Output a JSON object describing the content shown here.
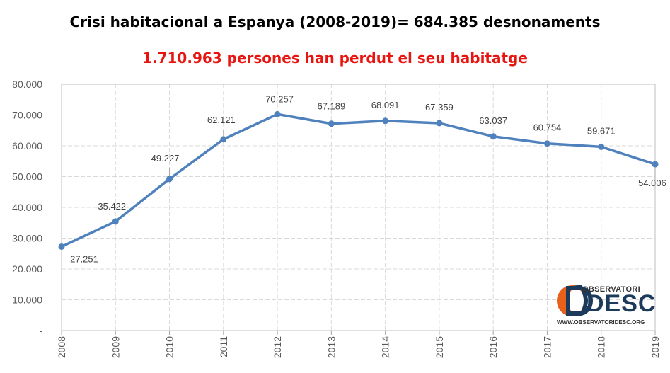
{
  "header": {
    "title": "Crisi habitacional a Espanya (2008-2019)= 684.385 desnonaments",
    "subtitle": "1.710.963 persones  han perdut el seu habitatge"
  },
  "colors": {
    "title": "#000000",
    "subtitle": "#e8140f",
    "line": "#4f81bd",
    "grid": "#d9d9d9",
    "logo_orange": "#e8611a",
    "logo_navy": "#1b3a5c"
  },
  "logo": {
    "top_text": "OBSERVATORI",
    "main_text": "DESC",
    "url": "WWW.OBSERVATORIDESC.ORG"
  },
  "chart_data": {
    "type": "line",
    "title": "Crisi habitacional a Espanya (2008-2019)= 684.385 desnonaments",
    "subtitle": "1.710.963 persones  han perdut el seu habitatge",
    "xlabel": "",
    "ylabel": "",
    "x": [
      "2008",
      "2009",
      "2010",
      "2011",
      "2012",
      "2013",
      "2014",
      "2015",
      "2016",
      "2017",
      "2018",
      "2019"
    ],
    "values": [
      27251,
      35422,
      49227,
      62121,
      70257,
      67189,
      68091,
      67359,
      63037,
      60754,
      59671,
      54006
    ],
    "data_labels": [
      "27.251",
      "35.422",
      "49.227",
      "62.121",
      "70.257",
      "67.189",
      "68.091",
      "67.359",
      "63.037",
      "60.754",
      "59.671",
      "54.006"
    ],
    "ylim": [
      0,
      80000
    ],
    "y_ticks": [
      0,
      10000,
      20000,
      30000,
      40000,
      50000,
      60000,
      70000,
      80000
    ],
    "y_tick_labels": [
      "-",
      "10.000",
      "20.000",
      "30.000",
      "40.000",
      "50.000",
      "60.000",
      "70.000",
      "80.000"
    ],
    "grid": true,
    "line_color": "#4f81bd",
    "marker": "circle"
  }
}
